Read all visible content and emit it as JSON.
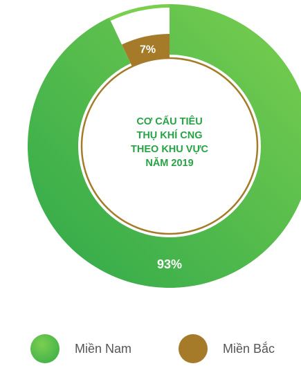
{
  "chart_data": {
    "type": "pie",
    "title_lines": [
      "CƠ CẤU TIÊU",
      "THỤ KHÍ CNG",
      "THEO KHU VỰC",
      "NĂM 2019"
    ],
    "series": [
      {
        "name": "Miền Nam",
        "value": 93,
        "label": "93%"
      },
      {
        "name": "Miền Bắc",
        "value": 7,
        "label": "7%"
      }
    ],
    "legend_position": "bottom"
  },
  "colors": {
    "mien_nam_light": "#7bcf4f",
    "mien_nam_dark": "#2fa84a",
    "mien_bac": "#a57b2a",
    "title": "#27a245"
  }
}
